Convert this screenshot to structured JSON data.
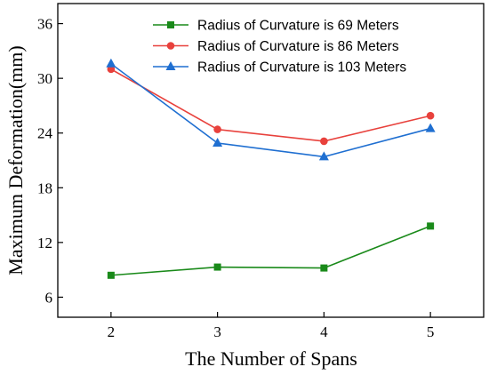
{
  "chart_data": {
    "type": "line",
    "x": [
      2,
      3,
      4,
      5
    ],
    "xlabel": "The Number of Spans",
    "ylabel": "Maximum Deformation(mm)",
    "xlim": [
      1.5,
      5.5
    ],
    "ylim": [
      3.8,
      38.2
    ],
    "xticks": [
      2,
      3,
      4,
      5
    ],
    "yticks": [
      6,
      12,
      18,
      24,
      30,
      36
    ],
    "grid": false,
    "legend_position": "top-right",
    "series": [
      {
        "name": "Radius of Curvature is 69 Meters",
        "color": "#1a8a1a",
        "marker": "square",
        "values": [
          8.4,
          9.3,
          9.2,
          13.8
        ]
      },
      {
        "name": "Radius of Curvature is 86 Meters",
        "color": "#e8413c",
        "marker": "circle",
        "values": [
          31.0,
          24.4,
          23.1,
          25.9
        ]
      },
      {
        "name": "Radius of Curvature is 103 Meters",
        "color": "#1f6fd1",
        "marker": "triangle",
        "values": [
          31.6,
          22.9,
          21.4,
          24.5
        ]
      }
    ]
  }
}
